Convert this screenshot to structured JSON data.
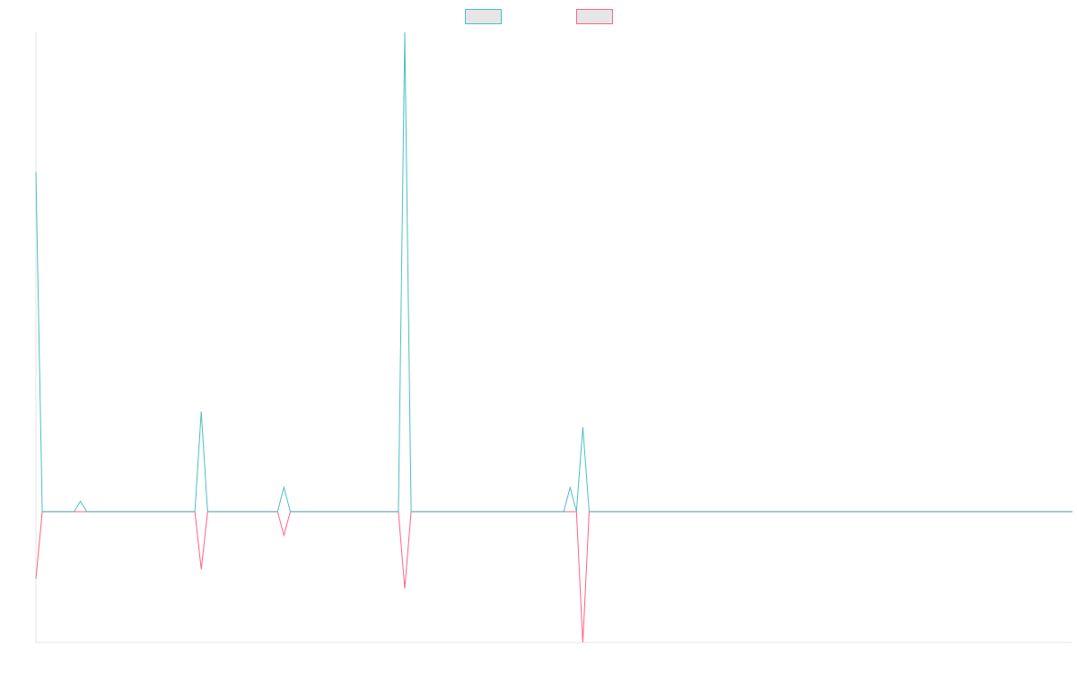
{
  "chart_data": {
    "type": "line",
    "title": "",
    "xlabel": "",
    "ylabel": "",
    "legend_position": "top-center",
    "grid": false,
    "x": [
      0,
      1,
      5,
      6,
      7,
      8,
      9,
      10,
      11,
      25,
      26,
      27,
      38,
      39,
      40,
      41,
      57,
      58,
      59,
      60,
      61,
      62,
      63,
      83,
      84,
      85,
      86,
      87,
      88,
      89,
      90,
      91,
      92,
      93,
      163
    ],
    "xlim": [
      0,
      163
    ],
    "ylim": [
      -150,
      550
    ],
    "series": [
      {
        "name": "",
        "color": "#4bc0c0",
        "values": [
          390,
          0,
          0,
          0,
          12,
          0,
          0,
          0,
          0,
          0,
          115,
          0,
          0,
          28,
          0,
          0,
          0,
          550,
          0,
          0,
          0,
          0,
          0,
          0,
          28,
          0,
          97,
          0,
          0,
          0,
          0,
          0,
          0,
          0,
          0
        ]
      },
      {
        "name": "",
        "color": "#ff6384",
        "values": [
          -77,
          0,
          0,
          0,
          0,
          0,
          0,
          0,
          0,
          0,
          -66,
          0,
          0,
          -27,
          0,
          0,
          0,
          -88,
          0,
          0,
          0,
          0,
          0,
          0,
          0,
          0,
          -150,
          0,
          0,
          0,
          0,
          0,
          0,
          0,
          0
        ]
      }
    ]
  }
}
